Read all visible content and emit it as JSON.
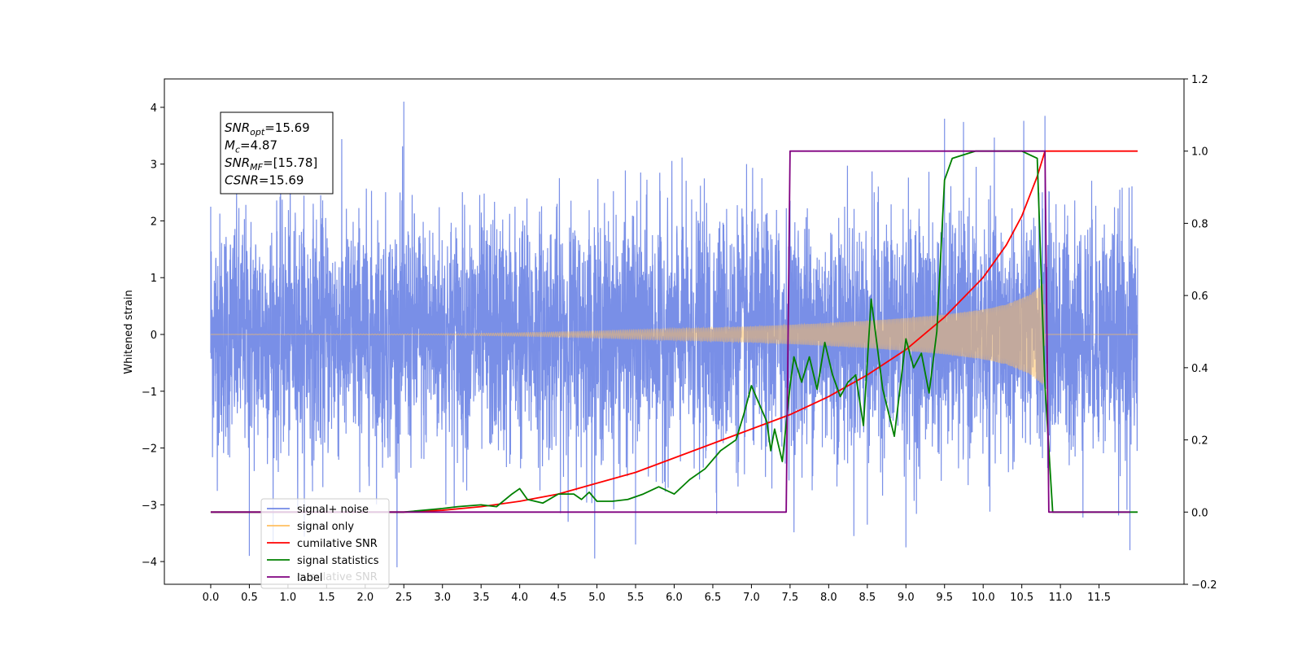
{
  "chart_data": {
    "type": "line",
    "ylabel": "Whitened strain",
    "xlim": [
      -0.6,
      12.6
    ],
    "ylim": [
      -4.4,
      4.5
    ],
    "y2lim": [
      -0.2,
      1.2
    ],
    "xticks": [
      "0.0",
      "0.5",
      "1.0",
      "1.5",
      "2.0",
      "2.5",
      "3.0",
      "3.5",
      "4.0",
      "4.5",
      "5.0",
      "5.5",
      "6.0",
      "6.5",
      "7.0",
      "7.5",
      "8.0",
      "8.5",
      "9.0",
      "9.5",
      "10.0",
      "10.5",
      "11.0",
      "11.5"
    ],
    "yticks": [
      "−4",
      "−3",
      "−2",
      "−1",
      "0",
      "1",
      "2",
      "3",
      "4"
    ],
    "y2ticks": [
      "−0.2",
      "0.0",
      "0.2",
      "0.4",
      "0.6",
      "0.8",
      "1.0",
      "1.2"
    ],
    "grid": false,
    "legend_position": "lower-left",
    "annotation": {
      "lines": [
        {
          "base": "SNR",
          "sub": "opt",
          "value": "=15.69"
        },
        {
          "base": "M",
          "sub": "c",
          "value": "=4.87"
        },
        {
          "base": "SNR",
          "sub": "MF",
          "value": "=[15.78]"
        },
        {
          "base": "CSNR",
          "sub": "",
          "value": "=15.69"
        }
      ]
    },
    "legend": [
      {
        "label": "signal+ noise",
        "color": "#7289e6"
      },
      {
        "label": "signal only",
        "color": "#ffbf60"
      },
      {
        "label": "cumilative SNR",
        "color": "#ff0000"
      },
      {
        "label": "signal statistics",
        "color": "#008000"
      },
      {
        "label": "label",
        "color": "#800080"
      }
    ],
    "legend_ghost_text": "cumilative SNR",
    "series": [
      {
        "name": "signal+ noise",
        "axis": "left",
        "color": "#7289e6",
        "x_range": [
          0.0,
          12.0
        ],
        "envelope_max_abs": 4.1,
        "note_samples": [
          [
            0.0,
            2.25
          ],
          [
            0.5,
            -3.9
          ],
          [
            2.5,
            4.1
          ],
          [
            5.5,
            -3.7
          ],
          [
            8.5,
            -3.35
          ],
          [
            9.0,
            -3.75
          ],
          [
            9.5,
            3.8
          ],
          [
            10.8,
            3.85
          ],
          [
            11.9,
            -3.8
          ]
        ]
      },
      {
        "name": "signal only",
        "axis": "left",
        "color": "#ffbf60",
        "envelope": [
          [
            0.0,
            0.0
          ],
          [
            3.0,
            0.01
          ],
          [
            4.0,
            0.03
          ],
          [
            5.0,
            0.06
          ],
          [
            6.0,
            0.1
          ],
          [
            7.0,
            0.14
          ],
          [
            7.5,
            0.17
          ],
          [
            8.0,
            0.2
          ],
          [
            8.5,
            0.24
          ],
          [
            9.0,
            0.29
          ],
          [
            9.5,
            0.35
          ],
          [
            10.0,
            0.44
          ],
          [
            10.3,
            0.53
          ],
          [
            10.6,
            0.7
          ],
          [
            10.78,
            0.9
          ],
          [
            10.8,
            0.0
          ],
          [
            12.0,
            0.0
          ]
        ]
      },
      {
        "name": "cumilative SNR",
        "axis": "right",
        "color": "#ff0000",
        "points": [
          [
            0.0,
            0.0
          ],
          [
            2.5,
            0.0
          ],
          [
            3.0,
            0.005
          ],
          [
            3.5,
            0.015
          ],
          [
            4.0,
            0.03
          ],
          [
            4.5,
            0.05
          ],
          [
            5.0,
            0.08
          ],
          [
            5.5,
            0.11
          ],
          [
            6.0,
            0.15
          ],
          [
            6.5,
            0.19
          ],
          [
            7.0,
            0.23
          ],
          [
            7.5,
            0.27
          ],
          [
            8.0,
            0.32
          ],
          [
            8.5,
            0.38
          ],
          [
            9.0,
            0.45
          ],
          [
            9.5,
            0.54
          ],
          [
            10.0,
            0.65
          ],
          [
            10.3,
            0.74
          ],
          [
            10.5,
            0.82
          ],
          [
            10.7,
            0.93
          ],
          [
            10.8,
            1.0
          ],
          [
            12.0,
            1.0
          ]
        ]
      },
      {
        "name": "signal statistics",
        "axis": "right",
        "color": "#008000",
        "points": [
          [
            0.0,
            0.0
          ],
          [
            2.5,
            0.0
          ],
          [
            3.0,
            0.01
          ],
          [
            3.2,
            0.015
          ],
          [
            3.5,
            0.02
          ],
          [
            3.7,
            0.015
          ],
          [
            3.9,
            0.05
          ],
          [
            4.0,
            0.065
          ],
          [
            4.1,
            0.035
          ],
          [
            4.3,
            0.025
          ],
          [
            4.5,
            0.05
          ],
          [
            4.7,
            0.05
          ],
          [
            4.8,
            0.035
          ],
          [
            4.9,
            0.055
          ],
          [
            5.0,
            0.03
          ],
          [
            5.2,
            0.03
          ],
          [
            5.4,
            0.035
          ],
          [
            5.6,
            0.05
          ],
          [
            5.8,
            0.07
          ],
          [
            6.0,
            0.05
          ],
          [
            6.2,
            0.09
          ],
          [
            6.4,
            0.12
          ],
          [
            6.6,
            0.17
          ],
          [
            6.8,
            0.2
          ],
          [
            6.9,
            0.27
          ],
          [
            7.0,
            0.35
          ],
          [
            7.1,
            0.3
          ],
          [
            7.2,
            0.25
          ],
          [
            7.25,
            0.17
          ],
          [
            7.3,
            0.23
          ],
          [
            7.4,
            0.14
          ],
          [
            7.5,
            0.35
          ],
          [
            7.55,
            0.43
          ],
          [
            7.65,
            0.36
          ],
          [
            7.75,
            0.43
          ],
          [
            7.85,
            0.34
          ],
          [
            7.95,
            0.47
          ],
          [
            8.05,
            0.38
          ],
          [
            8.15,
            0.32
          ],
          [
            8.25,
            0.36
          ],
          [
            8.35,
            0.38
          ],
          [
            8.45,
            0.24
          ],
          [
            8.55,
            0.59
          ],
          [
            8.7,
            0.34
          ],
          [
            8.85,
            0.21
          ],
          [
            9.0,
            0.48
          ],
          [
            9.1,
            0.4
          ],
          [
            9.2,
            0.44
          ],
          [
            9.3,
            0.33
          ],
          [
            9.4,
            0.5
          ],
          [
            9.5,
            0.92
          ],
          [
            9.6,
            0.98
          ],
          [
            9.75,
            0.99
          ],
          [
            9.9,
            1.0
          ],
          [
            10.5,
            1.0
          ],
          [
            10.7,
            0.98
          ],
          [
            10.8,
            0.35
          ],
          [
            10.9,
            0.0
          ],
          [
            12.0,
            0.0
          ]
        ]
      },
      {
        "name": "label",
        "axis": "right",
        "color": "#800080",
        "points": [
          [
            0.0,
            0.0
          ],
          [
            7.45,
            0.0
          ],
          [
            7.5,
            1.0
          ],
          [
            10.8,
            1.0
          ],
          [
            10.85,
            0.0
          ],
          [
            11.9,
            0.0
          ]
        ]
      }
    ]
  }
}
